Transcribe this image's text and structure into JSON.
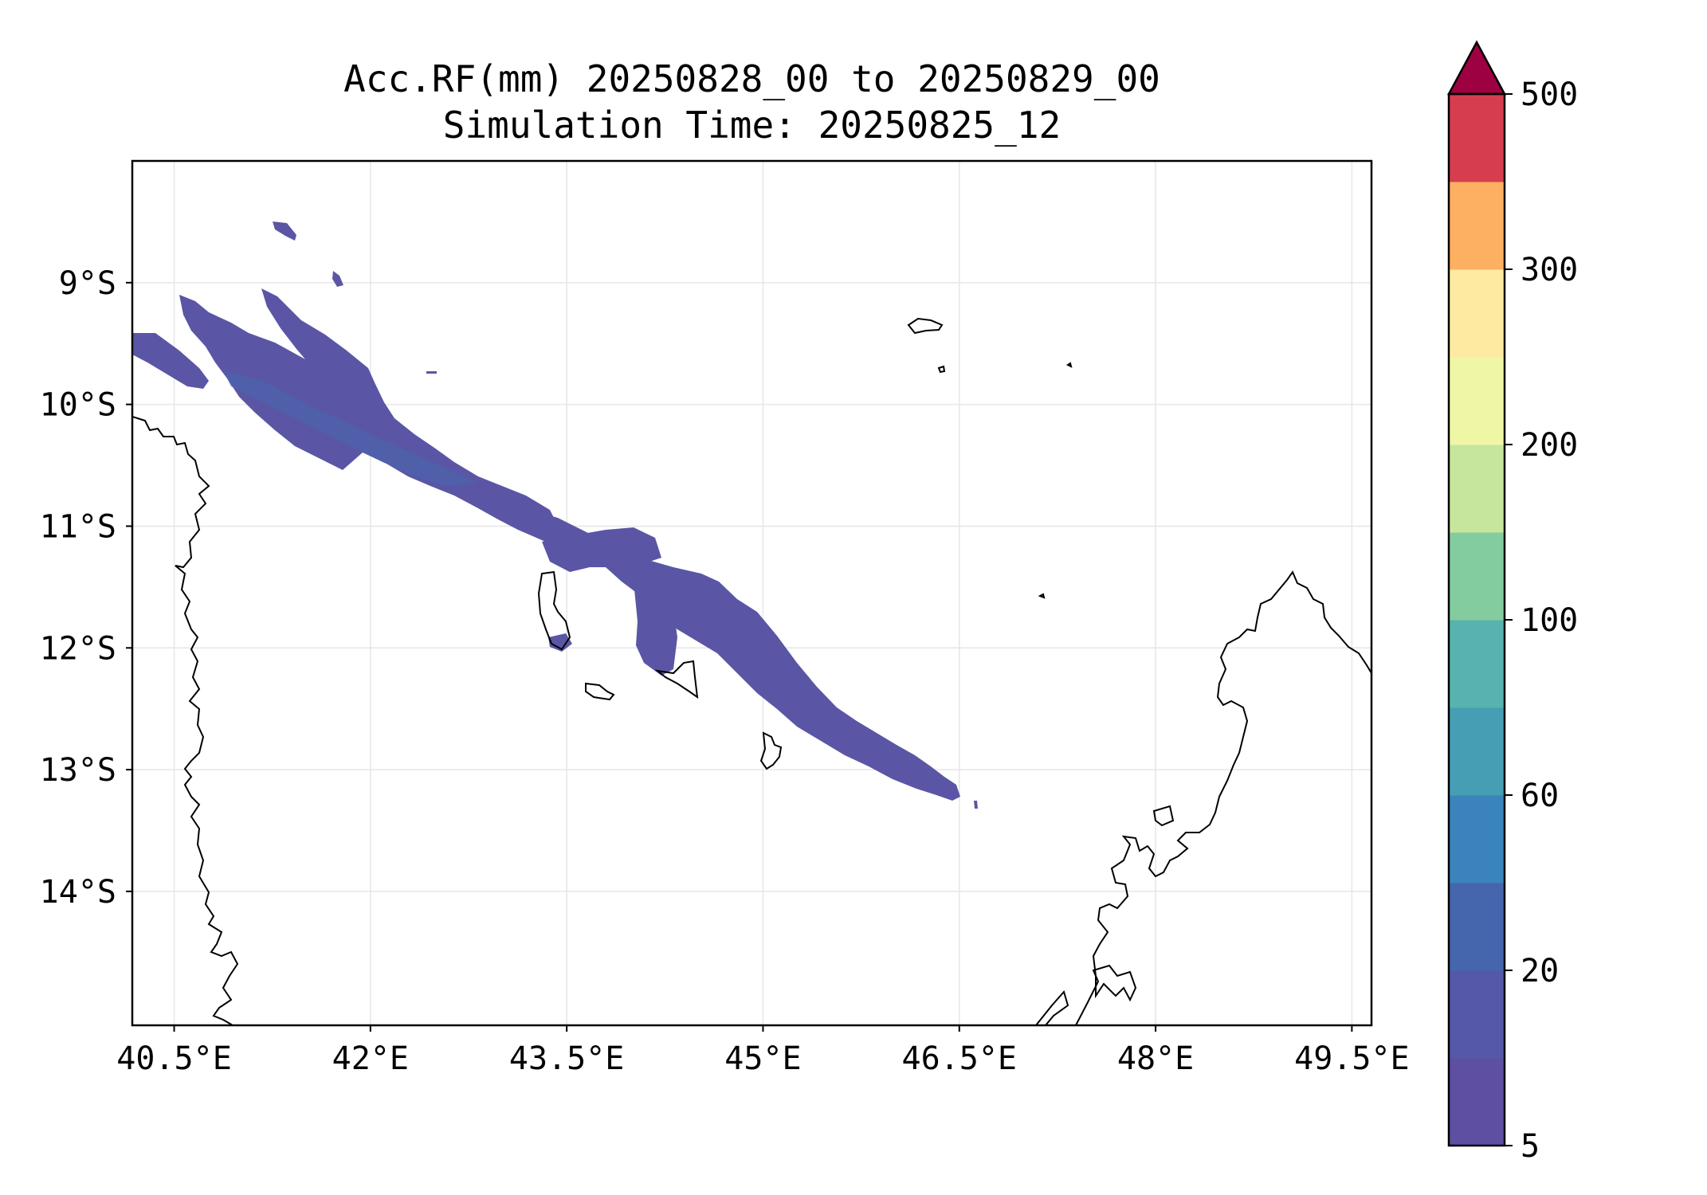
{
  "title": {
    "line1": "Acc.RF(mm) 20250828_00 to 20250829_00",
    "line2": "Simulation Time: 20250825_12"
  },
  "map": {
    "lon_range": [
      40.18,
      49.65
    ],
    "lat_range": [
      -15.1,
      -8.0
    ],
    "x_ticks": [
      {
        "value": 40.5,
        "label": "40.5°E"
      },
      {
        "value": 42.0,
        "label": "42°E"
      },
      {
        "value": 43.5,
        "label": "43.5°E"
      },
      {
        "value": 45.0,
        "label": "45°E"
      },
      {
        "value": 46.5,
        "label": "46.5°E"
      },
      {
        "value": 48.0,
        "label": "48°E"
      },
      {
        "value": 49.5,
        "label": "49.5°E"
      }
    ],
    "y_ticks": [
      {
        "value": -9,
        "label": "9°S"
      },
      {
        "value": -10,
        "label": "10°S"
      },
      {
        "value": -11,
        "label": "11°S"
      },
      {
        "value": -12,
        "label": "12°S"
      },
      {
        "value": -13,
        "label": "13°S"
      },
      {
        "value": -14,
        "label": "14°S"
      }
    ],
    "grid": true,
    "rain_color": "#5a56a5",
    "rain_core_color": "#4a64ac"
  },
  "colorbar": {
    "extend": "max",
    "levels": [
      {
        "label": "5"
      },
      {
        "label": ""
      },
      {
        "label": "20"
      },
      {
        "label": ""
      },
      {
        "label": "60"
      },
      {
        "label": ""
      },
      {
        "label": "100"
      },
      {
        "label": ""
      },
      {
        "label": "200"
      },
      {
        "label": ""
      },
      {
        "label": "300"
      },
      {
        "label": ""
      },
      {
        "label": "500"
      }
    ],
    "colors": [
      "#5e4fa2",
      "#5558a7",
      "#4565ad",
      "#3a84bb",
      "#459eb4",
      "#58b2ad",
      "#83cca0",
      "#c6e69c",
      "#eff7a6",
      "#feeba1",
      "#fdaf62",
      "#d63e4f"
    ],
    "extend_color": "#9e0142"
  }
}
